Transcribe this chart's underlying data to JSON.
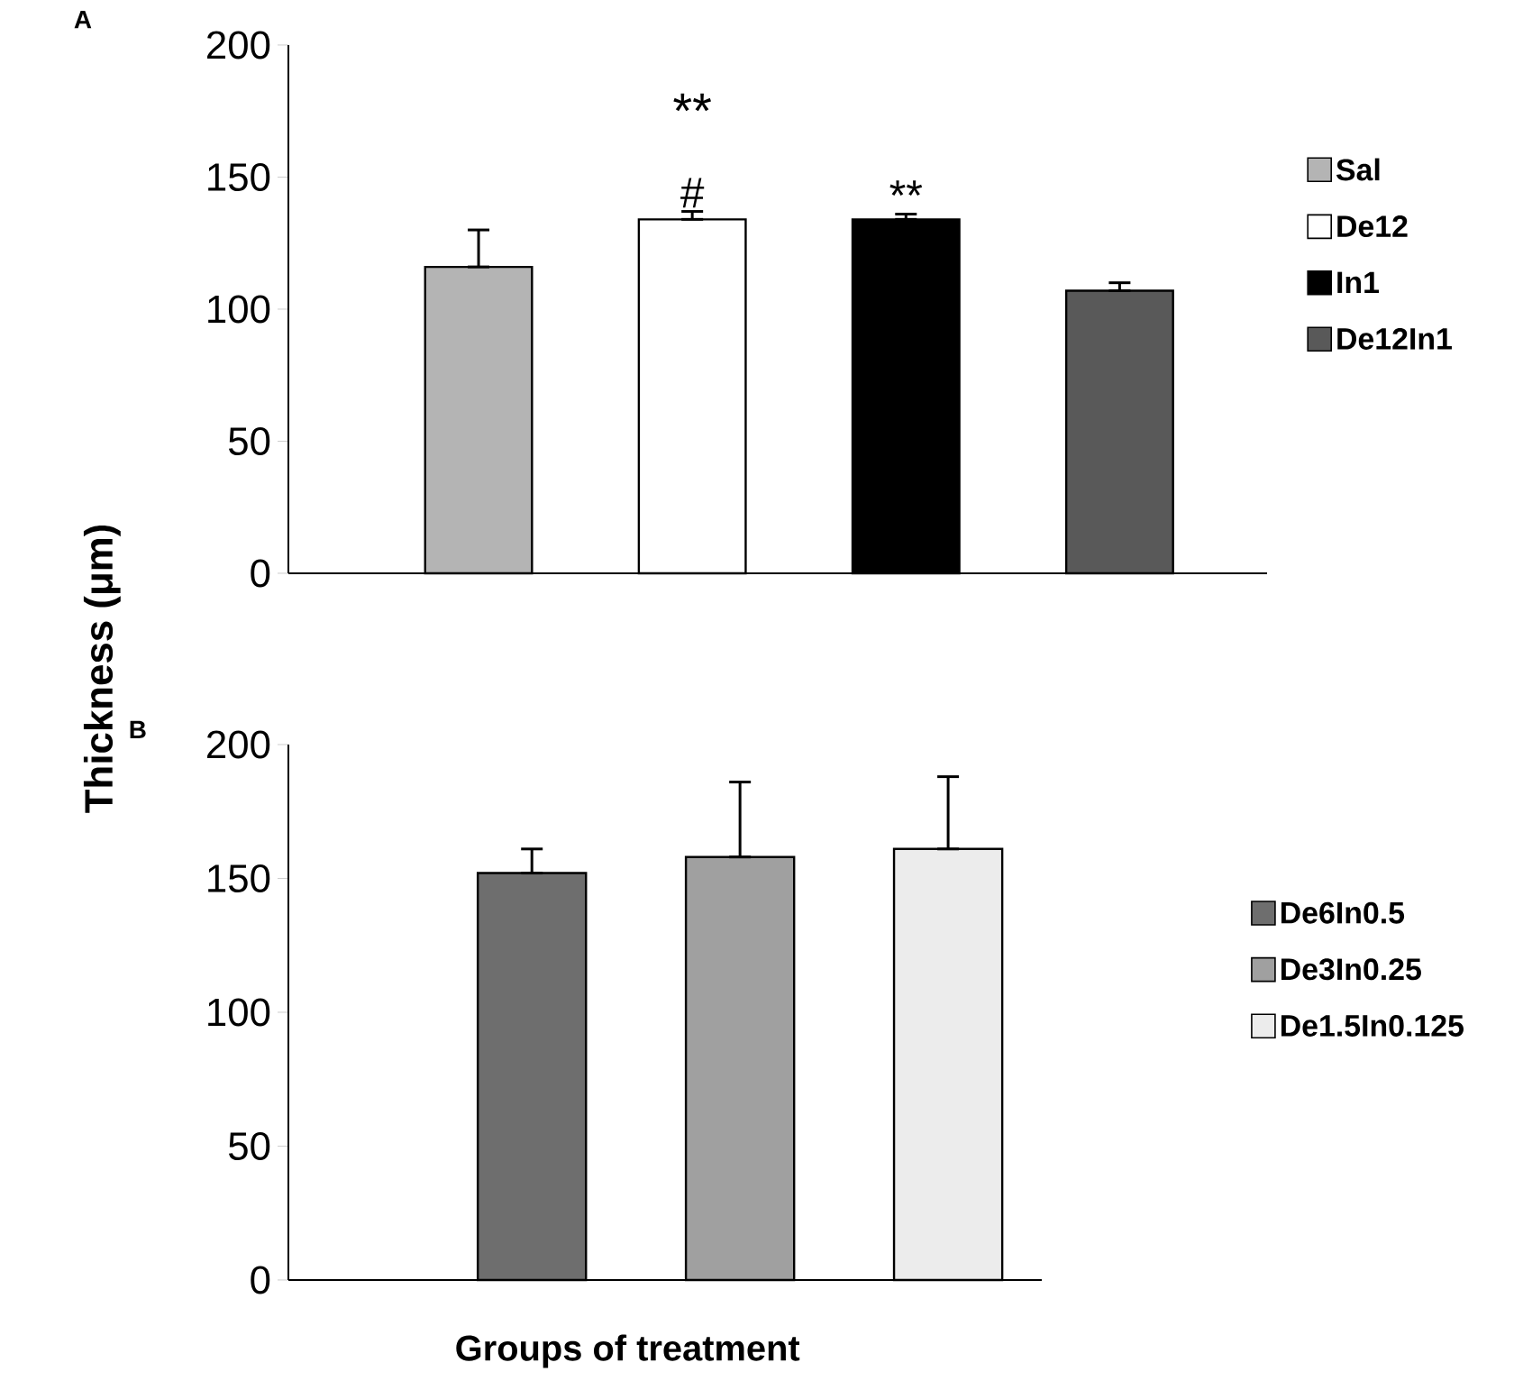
{
  "chart_data": [
    {
      "type": "bar",
      "ylabel": "Thickness (μm)",
      "title": "A",
      "annotations": [
        "**"
      ],
      "categories": [
        null,
        null,
        null,
        null
      ],
      "ylim": [
        0,
        200
      ],
      "yticks": [
        0,
        50,
        100,
        150,
        200
      ],
      "legend": "right",
      "series": [
        {
          "name": "Sal",
          "color": "#b4b4b4",
          "values": [
            116,
            null,
            null,
            null
          ],
          "errors": [
            [
              116,
              130
            ],
            null,
            null,
            null
          ]
        },
        {
          "name": "De12",
          "color": "#ffffff",
          "values": [
            null,
            134,
            null,
            null
          ],
          "errors": [
            null,
            [
              134,
              137
            ],
            null,
            null
          ],
          "value_labels": [
            null,
            "#",
            null,
            null
          ]
        },
        {
          "name": "In1",
          "color": "#000000",
          "values": [
            null,
            null,
            134,
            null
          ],
          "errors": [
            null,
            null,
            [
              134,
              136
            ],
            null
          ],
          "value_labels": [
            null,
            null,
            "**",
            null
          ]
        },
        {
          "name": "De12In1",
          "color": "#595959",
          "values": [
            null,
            null,
            null,
            107
          ],
          "errors": [
            null,
            null,
            null,
            [
              107,
              110
            ]
          ]
        }
      ]
    },
    {
      "type": "bar",
      "xlabel": "Groups of treatment",
      "title": "B",
      "categories": [
        null,
        null,
        null
      ],
      "ylim": [
        0,
        200
      ],
      "yticks": [
        0,
        50,
        100,
        150,
        200
      ],
      "legend": "right",
      "series": [
        {
          "name": "De6In0.5",
          "color": "#6e6e6e",
          "values": [
            152,
            null,
            null
          ],
          "errors": [
            [
              152,
              161
            ],
            null,
            null
          ]
        },
        {
          "name": "De3In0.25",
          "color": "#a0a0a0",
          "values": [
            null,
            158,
            null
          ],
          "errors": [
            null,
            [
              158,
              186
            ],
            null
          ]
        },
        {
          "name": "De1.5In0.125",
          "color": "#ececec",
          "values": [
            null,
            null,
            161
          ],
          "errors": [
            null,
            null,
            [
              161,
              188
            ]
          ]
        }
      ]
    }
  ]
}
